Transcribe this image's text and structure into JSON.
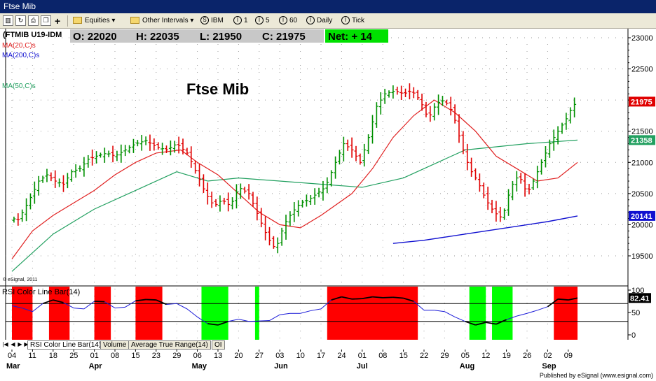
{
  "window": {
    "title": "Ftse Mib"
  },
  "toolbar": {
    "equities": "Equities",
    "other_intervals": "Other Intervals",
    "intervals": [
      {
        "key": "S",
        "label": "IBM"
      },
      {
        "key": "I",
        "label": "1"
      },
      {
        "key": "I",
        "label": "5"
      },
      {
        "key": "I",
        "label": "60"
      },
      {
        "key": "I",
        "label": "Daily"
      },
      {
        "key": "I",
        "label": "Tick"
      }
    ]
  },
  "quote": {
    "symbol": "(FTMIB U19-IDM",
    "open": "O: 22020",
    "high": "H: 22035",
    "low": "L: 21950",
    "close": "C: 21975",
    "net": "Net: + 14"
  },
  "indicators": {
    "ma20": "MA(20,C)s",
    "ma200": "MA(200,C)s",
    "ma50": "MA(50,C)s"
  },
  "colors": {
    "up": "#009000",
    "down": "#e00000",
    "ma20": "#e02020",
    "ma50": "#22a060",
    "ma200": "#1010d0",
    "rsi_over": "#ff0000",
    "rsi_under": "#00ff00",
    "net_bg": "#00e000"
  },
  "copyright": "© eSignal, 2011",
  "footer": "Published by eSignal (www.esignal.com)",
  "tabs": [
    "RSI Color Line Bar(14)",
    "Volume",
    "Average True Range(14)",
    "OI"
  ],
  "chart_data": [
    {
      "type": "ohlc",
      "title": "Ftse Mib",
      "ylim": [
        19300,
        23100
      ],
      "y_ticks": [
        19500,
        20000,
        20500,
        21000,
        21500,
        22000,
        22500,
        23000
      ],
      "x_dates": [
        "04",
        "11",
        "18",
        "25",
        "01",
        "08",
        "15",
        "23",
        "29",
        "06",
        "13",
        "20",
        "27",
        "03",
        "10",
        "17",
        "24",
        "01",
        "08",
        "15",
        "22",
        "29",
        "05",
        "12",
        "19",
        "26",
        "02",
        "09"
      ],
      "months": [
        {
          "label": "Mar",
          "at": 0
        },
        {
          "label": "Apr",
          "at": 4
        },
        {
          "label": "May",
          "at": 9
        },
        {
          "label": "Jun",
          "at": 13
        },
        {
          "label": "Jul",
          "at": 17
        },
        {
          "label": "Aug",
          "at": 22
        },
        {
          "label": "Sep",
          "at": 26
        }
      ],
      "price_labels": [
        {
          "value": 21975,
          "text": "21975",
          "color": "#e00000"
        },
        {
          "value": 21358,
          "text": "21358",
          "color": "#22a060"
        },
        {
          "value": 20141,
          "text": "20141",
          "color": "#1010d0"
        }
      ],
      "close_path": [
        [
          0,
          20100
        ],
        [
          0.3,
          20080
        ],
        [
          0.6,
          20250
        ],
        [
          1,
          20500
        ],
        [
          1.3,
          20700
        ],
        [
          1.7,
          20800
        ],
        [
          2.1,
          20700
        ],
        [
          2.5,
          20650
        ],
        [
          2.9,
          20850
        ],
        [
          3.3,
          20900
        ],
        [
          3.7,
          21050
        ],
        [
          4.1,
          21100
        ],
        [
          4.6,
          21150
        ],
        [
          5,
          21100
        ],
        [
          5.5,
          21200
        ],
        [
          6,
          21300
        ],
        [
          6.5,
          21350
        ],
        [
          7,
          21250
        ],
        [
          7.5,
          21200
        ],
        [
          8,
          21300
        ],
        [
          8.5,
          21150
        ],
        [
          9,
          20800
        ],
        [
          9.4,
          20500
        ],
        [
          9.8,
          20300
        ],
        [
          10.2,
          20400
        ],
        [
          10.6,
          20300
        ],
        [
          11,
          20600
        ],
        [
          11.5,
          20500
        ],
        [
          12,
          20100
        ],
        [
          12.4,
          19800
        ],
        [
          12.8,
          19600
        ],
        [
          13.2,
          20000
        ],
        [
          13.6,
          20200
        ],
        [
          14,
          20350
        ],
        [
          14.4,
          20400
        ],
        [
          14.8,
          20500
        ],
        [
          15.2,
          20600
        ],
        [
          15.7,
          21000
        ],
        [
          16.1,
          21300
        ],
        [
          16.5,
          21200
        ],
        [
          16.9,
          21000
        ],
        [
          17.3,
          21400
        ],
        [
          17.7,
          21900
        ],
        [
          18.1,
          22100
        ],
        [
          18.6,
          22150
        ],
        [
          19,
          22100
        ],
        [
          19.4,
          22150
        ],
        [
          19.8,
          22000
        ],
        [
          20.2,
          21700
        ],
        [
          20.6,
          21950
        ],
        [
          21,
          22000
        ],
        [
          21.4,
          21800
        ],
        [
          21.8,
          21300
        ],
        [
          22.2,
          20900
        ],
        [
          22.6,
          20700
        ],
        [
          23,
          20400
        ],
        [
          23.4,
          20200
        ],
        [
          23.8,
          20100
        ],
        [
          24.2,
          20600
        ],
        [
          24.6,
          20800
        ],
        [
          25,
          20500
        ],
        [
          25.3,
          20700
        ],
        [
          25.7,
          21000
        ],
        [
          26.1,
          21300
        ],
        [
          26.5,
          21500
        ],
        [
          26.9,
          21700
        ],
        [
          27.2,
          21900
        ],
        [
          27.45,
          21975
        ]
      ],
      "ma20": [
        [
          0,
          19450
        ],
        [
          1,
          19900
        ],
        [
          2,
          20150
        ],
        [
          3,
          20350
        ],
        [
          4,
          20550
        ],
        [
          5,
          20800
        ],
        [
          6,
          21000
        ],
        [
          7,
          21150
        ],
        [
          8.2,
          21200
        ],
        [
          9,
          21000
        ],
        [
          10,
          20800
        ],
        [
          11,
          20500
        ],
        [
          12,
          20200
        ],
        [
          13,
          20000
        ],
        [
          14,
          19950
        ],
        [
          15,
          20150
        ],
        [
          16.5,
          20500
        ],
        [
          17.5,
          20900
        ],
        [
          18.5,
          21400
        ],
        [
          19.5,
          21750
        ],
        [
          20.5,
          22000
        ],
        [
          21.5,
          21800
        ],
        [
          22.5,
          21500
        ],
        [
          23.5,
          21100
        ],
        [
          24.5,
          20900
        ],
        [
          25.5,
          20700
        ],
        [
          26.5,
          20750
        ],
        [
          27.45,
          21000
        ]
      ],
      "ma50": [
        [
          0,
          19250
        ],
        [
          2,
          19850
        ],
        [
          4,
          20250
        ],
        [
          6,
          20550
        ],
        [
          8,
          20850
        ],
        [
          9.5,
          20700
        ],
        [
          11,
          20750
        ],
        [
          13,
          20700
        ],
        [
          15,
          20650
        ],
        [
          17,
          20600
        ],
        [
          19,
          20750
        ],
        [
          21,
          21050
        ],
        [
          22,
          21200
        ],
        [
          23.5,
          21250
        ],
        [
          25,
          21300
        ],
        [
          27.45,
          21358
        ]
      ],
      "ma200": [
        [
          18.5,
          19700
        ],
        [
          20,
          19750
        ],
        [
          22,
          19850
        ],
        [
          24,
          19950
        ],
        [
          26,
          20050
        ],
        [
          27.45,
          20141
        ]
      ]
    },
    {
      "type": "line",
      "title": "RSI Color Line Bar(14)",
      "ylim": [
        -10,
        100
      ],
      "y_ticks": [
        0,
        50,
        100
      ],
      "levels": [
        70,
        30
      ],
      "last_value": "82.41",
      "red_zones": [
        [
          0,
          1
        ],
        [
          1.8,
          2.8
        ],
        [
          4,
          4.8
        ],
        [
          6,
          7.3
        ],
        [
          15.3,
          19.7
        ],
        [
          26.3,
          27.45
        ]
      ],
      "green_zones": [
        [
          9.2,
          10.5
        ],
        [
          11.8,
          12
        ],
        [
          22.2,
          23
        ],
        [
          23.3,
          24.3
        ]
      ],
      "rsi": [
        [
          0,
          65
        ],
        [
          0.5,
          60
        ],
        [
          1,
          52
        ],
        [
          1.5,
          70
        ],
        [
          2,
          78
        ],
        [
          2.5,
          72
        ],
        [
          3,
          60
        ],
        [
          3.5,
          58
        ],
        [
          4,
          75
        ],
        [
          4.5,
          74
        ],
        [
          5,
          60
        ],
        [
          5.5,
          62
        ],
        [
          6,
          76
        ],
        [
          6.5,
          79
        ],
        [
          7,
          78
        ],
        [
          7.5,
          68
        ],
        [
          8,
          70
        ],
        [
          8.5,
          58
        ],
        [
          9,
          40
        ],
        [
          9.5,
          25
        ],
        [
          10,
          22
        ],
        [
          10.5,
          30
        ],
        [
          11,
          35
        ],
        [
          11.5,
          30
        ],
        [
          12,
          31
        ],
        [
          12.5,
          32
        ],
        [
          13,
          45
        ],
        [
          13.5,
          48
        ],
        [
          14,
          48
        ],
        [
          14.5,
          54
        ],
        [
          15,
          58
        ],
        [
          15.5,
          78
        ],
        [
          16,
          85
        ],
        [
          16.5,
          80
        ],
        [
          17,
          81
        ],
        [
          17.5,
          85
        ],
        [
          18,
          83
        ],
        [
          18.5,
          84
        ],
        [
          19,
          82
        ],
        [
          19.5,
          75
        ],
        [
          20,
          55
        ],
        [
          20.5,
          55
        ],
        [
          21,
          52
        ],
        [
          21.5,
          40
        ],
        [
          22,
          30
        ],
        [
          22.5,
          22
        ],
        [
          23,
          28
        ],
        [
          23.5,
          24
        ],
        [
          24,
          34
        ],
        [
          24.5,
          42
        ],
        [
          25,
          48
        ],
        [
          25.5,
          55
        ],
        [
          26,
          63
        ],
        [
          26.5,
          80
        ],
        [
          27,
          78
        ],
        [
          27.45,
          82.41
        ]
      ]
    }
  ]
}
